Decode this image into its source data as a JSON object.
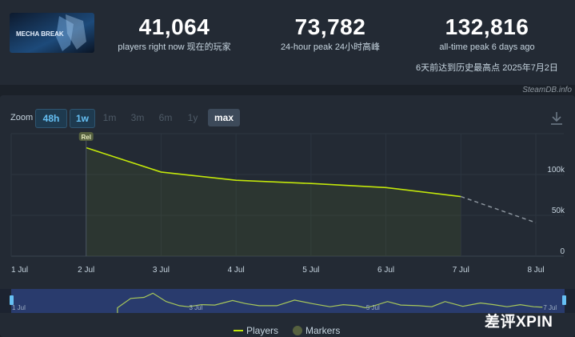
{
  "stats": {
    "current": {
      "value": "41,064",
      "label": "players right now  现在的玩家"
    },
    "peak24": {
      "value": "73,782",
      "label": "24-hour peak  24小时高峰"
    },
    "alltime": {
      "value": "132,816",
      "label": "all-time peak 6 days ago",
      "sublabel": "6天前达到历史最高点 2025年7月2日"
    }
  },
  "game": {
    "logo_text": "MECHA BREAK"
  },
  "attribution": "SteamDB.info",
  "zoom": {
    "label": "Zoom",
    "buttons": [
      "48h",
      "1w",
      "1m",
      "3m",
      "6m",
      "1y",
      "max"
    ]
  },
  "watermark": "差评XPIN",
  "colors": {
    "line": "#c2e60a",
    "accent": "#66c0f4",
    "background": "#1b2129",
    "panel": "#232a34"
  },
  "chart_data": {
    "type": "line",
    "x_ticks": [
      "1 Jul",
      "2 Jul",
      "3 Jul",
      "4 Jul",
      "5 Jul",
      "6 Jul",
      "7 Jul",
      "8 Jul"
    ],
    "y_ticks": [
      "0",
      "50k",
      "100k"
    ],
    "ylim": [
      0,
      150000
    ],
    "series": [
      {
        "name": "Players",
        "x": [
          2,
          3,
          4,
          5,
          6,
          7
        ],
        "y": [
          132816,
          103000,
          93000,
          89000,
          84000,
          73000
        ]
      }
    ],
    "projection": {
      "x": [
        7,
        8
      ],
      "y": [
        73000,
        41064
      ]
    },
    "markers": [
      {
        "x": 2,
        "label": "Rel"
      }
    ],
    "navigator": {
      "labels": [
        "1 Jul",
        "3 Jul",
        "5 Jul",
        "7 Jul"
      ],
      "x": [
        2.2,
        2.35,
        2.5,
        2.6,
        2.75,
        2.9,
        3.0,
        3.15,
        3.3,
        3.5,
        3.65,
        3.8,
        4.0,
        4.2,
        4.4,
        4.6,
        4.75,
        4.9,
        5.0,
        5.1,
        5.25,
        5.4,
        5.6,
        5.75,
        5.9,
        6.1,
        6.3,
        6.45,
        6.6,
        6.75,
        6.9,
        7.0
      ],
      "y": [
        0.25,
        0.7,
        0.75,
        0.95,
        0.55,
        0.35,
        0.3,
        0.4,
        0.38,
        0.6,
        0.45,
        0.35,
        0.35,
        0.62,
        0.45,
        0.3,
        0.4,
        0.35,
        0.25,
        0.35,
        0.55,
        0.38,
        0.35,
        0.3,
        0.55,
        0.32,
        0.48,
        0.4,
        0.3,
        0.4,
        0.3,
        0.28
      ]
    },
    "legend": [
      "Players",
      "Markers"
    ]
  }
}
